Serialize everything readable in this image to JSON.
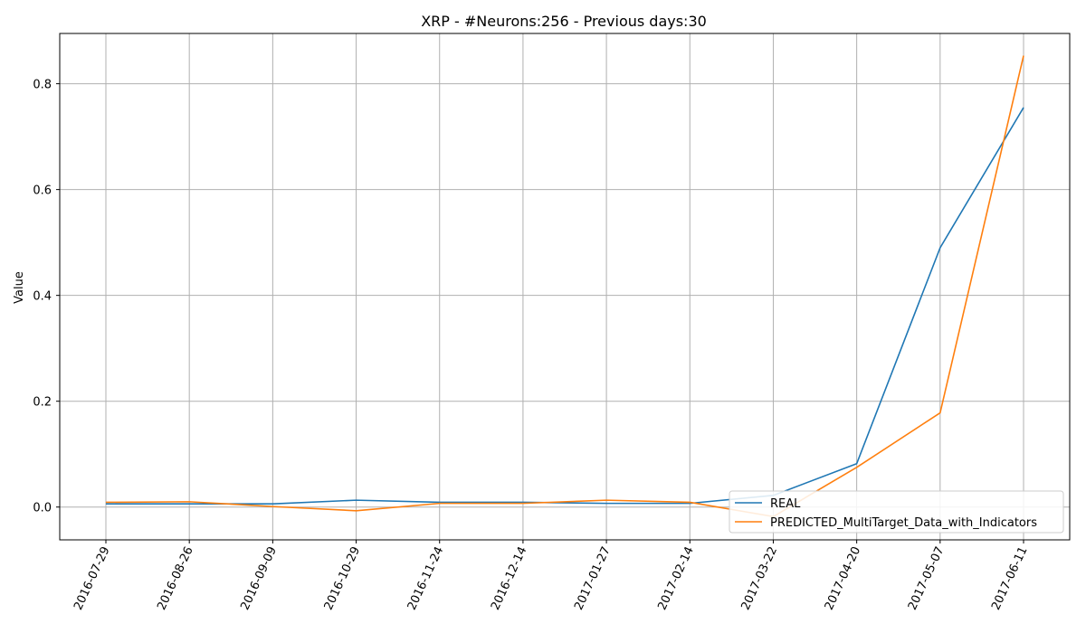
{
  "chart_data": {
    "type": "line",
    "title": "XRP - #Neurons:256 - Previous days:30",
    "xlabel": "",
    "ylabel": "Value",
    "categories": [
      "2016-07-29",
      "2016-08-26",
      "2016-09-09",
      "2016-10-29",
      "2016-11-24",
      "2016-12-14",
      "2017-01-27",
      "2017-02-14",
      "2017-03-22",
      "2017-04-20",
      "2017-05-07",
      "2017-06-11"
    ],
    "ylim": [
      -0.062,
      0.895
    ],
    "yticks": [
      0.0,
      0.2,
      0.4,
      0.6,
      0.8
    ],
    "ytick_labels": [
      "0.0",
      "0.2",
      "0.4",
      "0.6",
      "0.8"
    ],
    "grid": true,
    "legend_position": "lower-right",
    "series": [
      {
        "name": "REAL",
        "color": "#1f77b4",
        "values": [
          0.006,
          0.006,
          0.006,
          0.013,
          0.009,
          0.009,
          0.007,
          0.007,
          0.022,
          0.082,
          0.49,
          0.755
        ]
      },
      {
        "name": "PREDICTED_MultiTarget_Data_with_Indicators",
        "color": "#ff7f0e",
        "values": [
          0.009,
          0.01,
          0.001,
          -0.007,
          0.007,
          0.007,
          0.013,
          0.009,
          -0.018,
          0.075,
          0.178,
          0.853
        ]
      }
    ]
  }
}
